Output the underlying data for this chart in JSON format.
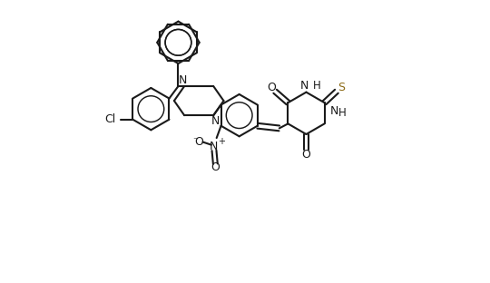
{
  "bg": "#ffffff",
  "lc": "#1a1a1a",
  "lw": 1.5,
  "figsize": [
    5.4,
    3.12
  ],
  "dpi": 100,
  "xlim": [
    -0.5,
    10.5
  ],
  "ylim": [
    -0.5,
    6.5
  ]
}
